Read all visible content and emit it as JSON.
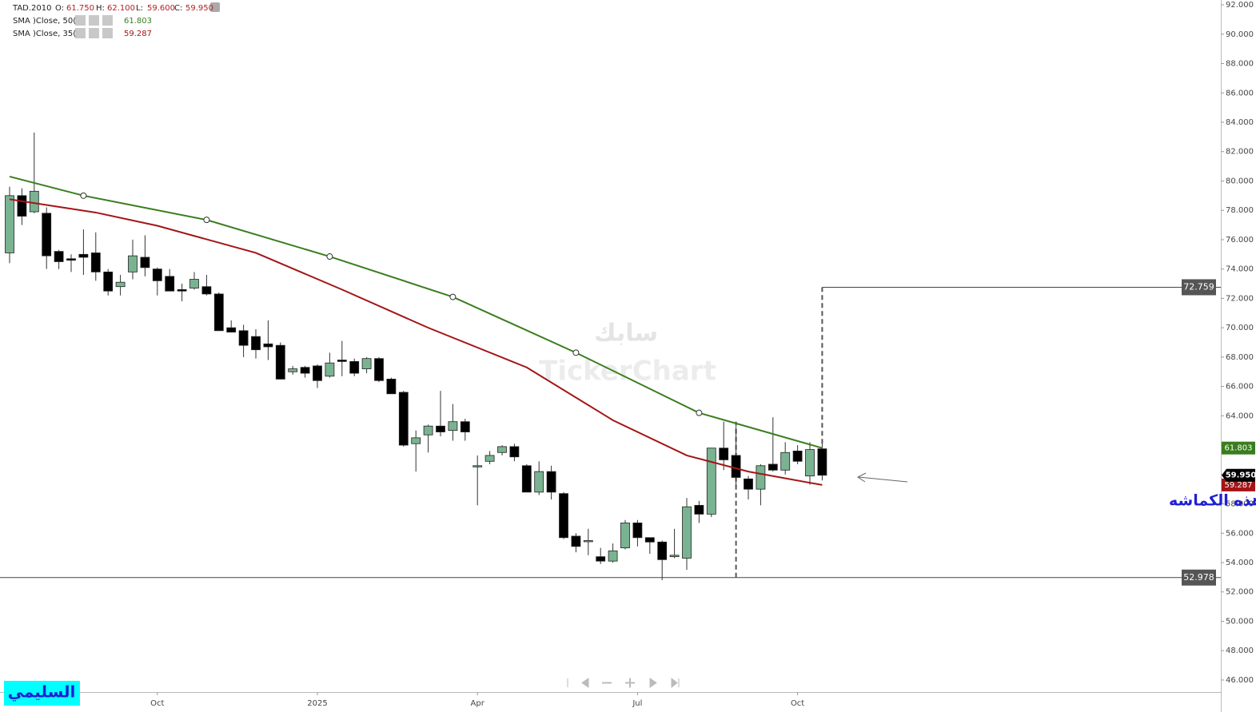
{
  "chart_data": {
    "type": "candlestick",
    "legend": {
      "symbol": "TAD.2010",
      "fields": [
        {
          "label": "O:",
          "value": "61.750"
        },
        {
          "label": "H:",
          "value": "62.100"
        },
        {
          "label": "L:",
          "value": "59.600"
        },
        {
          "label": "C:",
          "value": "59.950"
        }
      ]
    },
    "categories": [
      null,
      null,
      null,
      null,
      null,
      null,
      null,
      null,
      null,
      null,
      null,
      null,
      "Oct",
      null,
      null,
      null,
      null,
      null,
      null,
      null,
      null,
      null,
      null,
      null,
      null,
      "2025",
      null,
      null,
      null,
      null,
      null,
      null,
      null,
      null,
      null,
      null,
      null,
      null,
      "Apr",
      null,
      null,
      null,
      null,
      null,
      null,
      null,
      null,
      null,
      null,
      null,
      null,
      "Jul",
      null,
      null,
      null,
      null,
      null,
      null,
      null,
      null,
      null,
      null,
      null,
      null,
      "Oct",
      null,
      null
    ],
    "open": [
      75.1,
      79.0,
      77.9,
      77.8,
      75.2,
      74.7,
      75.0,
      75.1,
      73.8,
      72.8,
      73.8,
      74.8,
      74.0,
      73.5,
      72.6,
      72.7,
      72.8,
      72.3,
      70.0,
      69.8,
      69.4,
      68.9,
      68.8,
      67.0,
      67.3,
      67.4,
      66.7,
      67.8,
      67.7,
      67.2,
      67.9,
      66.5,
      65.6,
      62.1,
      62.7,
      63.3,
      63.0,
      63.6,
      60.55,
      60.9,
      61.5,
      61.9,
      60.6,
      58.8,
      60.2,
      58.7,
      55.8,
      55.45,
      54.4,
      54.1,
      55.0,
      56.7,
      55.7,
      55.4,
      54.4,
      54.3,
      57.9,
      57.3,
      61.8,
      61.3,
      59.7,
      59.0,
      60.7,
      60.3,
      61.6,
      59.9,
      61.75
    ],
    "high": [
      79.6,
      79.5,
      83.3,
      78.2,
      75.3,
      75.0,
      76.7,
      76.5,
      74.0,
      73.6,
      76.0,
      76.3,
      74.1,
      74.0,
      73.0,
      73.8,
      73.6,
      72.4,
      70.5,
      70.2,
      69.9,
      70.5,
      69.0,
      67.4,
      67.4,
      67.5,
      68.3,
      69.1,
      67.9,
      68.0,
      68.0,
      66.6,
      65.7,
      63.0,
      63.4,
      65.7,
      64.8,
      63.8,
      61.3,
      61.6,
      62.0,
      62.1,
      60.7,
      60.9,
      60.6,
      58.8,
      56.0,
      56.3,
      55.0,
      55.3,
      56.9,
      56.9,
      55.7,
      55.5,
      56.3,
      58.4,
      58.2,
      61.8,
      63.6,
      63.3,
      59.9,
      60.7,
      63.9,
      62.2,
      62.0,
      62.2,
      62.1
    ],
    "low": [
      74.4,
      77.0,
      77.8,
      74.0,
      74.0,
      73.8,
      73.6,
      73.2,
      72.2,
      72.2,
      73.3,
      73.5,
      72.2,
      72.5,
      71.8,
      72.6,
      72.2,
      69.8,
      69.7,
      68.0,
      67.9,
      67.8,
      66.5,
      66.8,
      66.6,
      65.9,
      66.6,
      66.7,
      66.7,
      66.9,
      66.3,
      65.5,
      61.9,
      60.2,
      61.5,
      62.6,
      62.3,
      62.3,
      57.9,
      60.7,
      61.3,
      60.9,
      58.8,
      58.6,
      58.3,
      55.6,
      54.7,
      54.5,
      53.9,
      54.0,
      54.9,
      55.1,
      54.6,
      52.8,
      54.3,
      53.5,
      56.7,
      57.1,
      60.3,
      59.2,
      58.3,
      57.9,
      60.2,
      60.0,
      60.7,
      59.3,
      59.6
    ],
    "close": [
      79.0,
      77.6,
      79.3,
      74.9,
      74.5,
      74.6,
      74.8,
      73.8,
      72.5,
      73.1,
      74.9,
      74.1,
      73.2,
      72.5,
      72.5,
      73.3,
      72.3,
      69.8,
      69.7,
      68.8,
      68.5,
      68.7,
      66.5,
      67.2,
      66.9,
      66.4,
      67.6,
      67.7,
      66.9,
      67.9,
      66.4,
      65.5,
      62.0,
      62.5,
      63.3,
      62.9,
      63.6,
      62.9,
      60.6,
      61.3,
      61.9,
      61.2,
      58.8,
      60.2,
      58.8,
      55.7,
      55.1,
      55.5,
      54.1,
      54.8,
      56.7,
      55.7,
      55.4,
      54.2,
      54.5,
      57.8,
      57.3,
      61.8,
      61.0,
      59.8,
      59.0,
      60.6,
      60.3,
      61.5,
      60.9,
      61.7,
      59.95
    ],
    "up_color": "#7ab391",
    "down_color": "#000000",
    "series": [
      {
        "name": "SMA  )Close, 50(",
        "color": "#3a7d1e",
        "markers": true,
        "x": [
          0,
          6,
          16,
          26,
          36,
          46,
          56,
          66
        ],
        "values": [
          80.3,
          79.0,
          77.35,
          74.85,
          72.1,
          68.3,
          64.2,
          61.803
        ],
        "value_labels": [
          null,
          null,
          null,
          null,
          null,
          null,
          null,
          "61.803"
        ]
      },
      {
        "name": "SMA  )Close, 35(",
        "color": "#a31515",
        "markers": false,
        "x": [
          0,
          7,
          12,
          20,
          27,
          34,
          42,
          49,
          55,
          60,
          66
        ],
        "values": [
          78.75,
          77.85,
          76.95,
          75.1,
          72.6,
          70.0,
          67.3,
          63.7,
          61.3,
          60.2,
          59.287
        ],
        "value_labels": [
          null,
          null,
          null,
          null,
          null,
          null,
          null,
          null,
          null,
          null,
          "59.287"
        ]
      }
    ],
    "levels": [
      {
        "value": 72.759,
        "label": "72.759",
        "from": 66
      },
      {
        "value": 52.978,
        "label": "52.978",
        "from": null
      }
    ],
    "dashed_lines": [
      {
        "x": 66,
        "y": [
          62.1,
          72.759
        ]
      },
      {
        "x": 59,
        "y": [
          52.978,
          63.6
        ]
      }
    ],
    "ylim": [
      45.18,
      92.33
    ],
    "yticks": [
      {
        "value": 46,
        "label": "46.000"
      },
      {
        "value": 48,
        "label": "48.000"
      },
      {
        "value": 50,
        "label": "50.000"
      },
      {
        "value": 52,
        "label": "52.000"
      },
      {
        "value": 54,
        "label": "54.000"
      },
      {
        "value": 56,
        "label": "56.000"
      },
      {
        "value": 58,
        "label": "58.000"
      },
      {
        "value": 60,
        "label": "60.000"
      },
      {
        "value": 62,
        "label": "62.000"
      },
      {
        "value": 64,
        "label": "64.000"
      },
      {
        "value": 66,
        "label": "66.000"
      },
      {
        "value": 68,
        "label": "68.000"
      },
      {
        "value": 70,
        "label": "70.000"
      },
      {
        "value": 72,
        "label": "72.000"
      },
      {
        "value": 74,
        "label": "74.000"
      },
      {
        "value": 76,
        "label": "76.000"
      },
      {
        "value": 78,
        "label": "78.000"
      },
      {
        "value": 80,
        "label": "80.000"
      },
      {
        "value": 82,
        "label": "82.000"
      },
      {
        "value": 84,
        "label": "84.000"
      },
      {
        "value": 86,
        "label": "86.000"
      },
      {
        "value": 88,
        "label": "88.000"
      },
      {
        "value": 90,
        "label": "90.000"
      },
      {
        "value": 92,
        "label": "92.000"
      }
    ],
    "annotations": {
      "note": "شتخرج سابك الاسبوع القادم من هذه الكماشه",
      "watermark_name": "سابك",
      "watermark_brand": "TickerChart",
      "author": "السليمي"
    }
  }
}
